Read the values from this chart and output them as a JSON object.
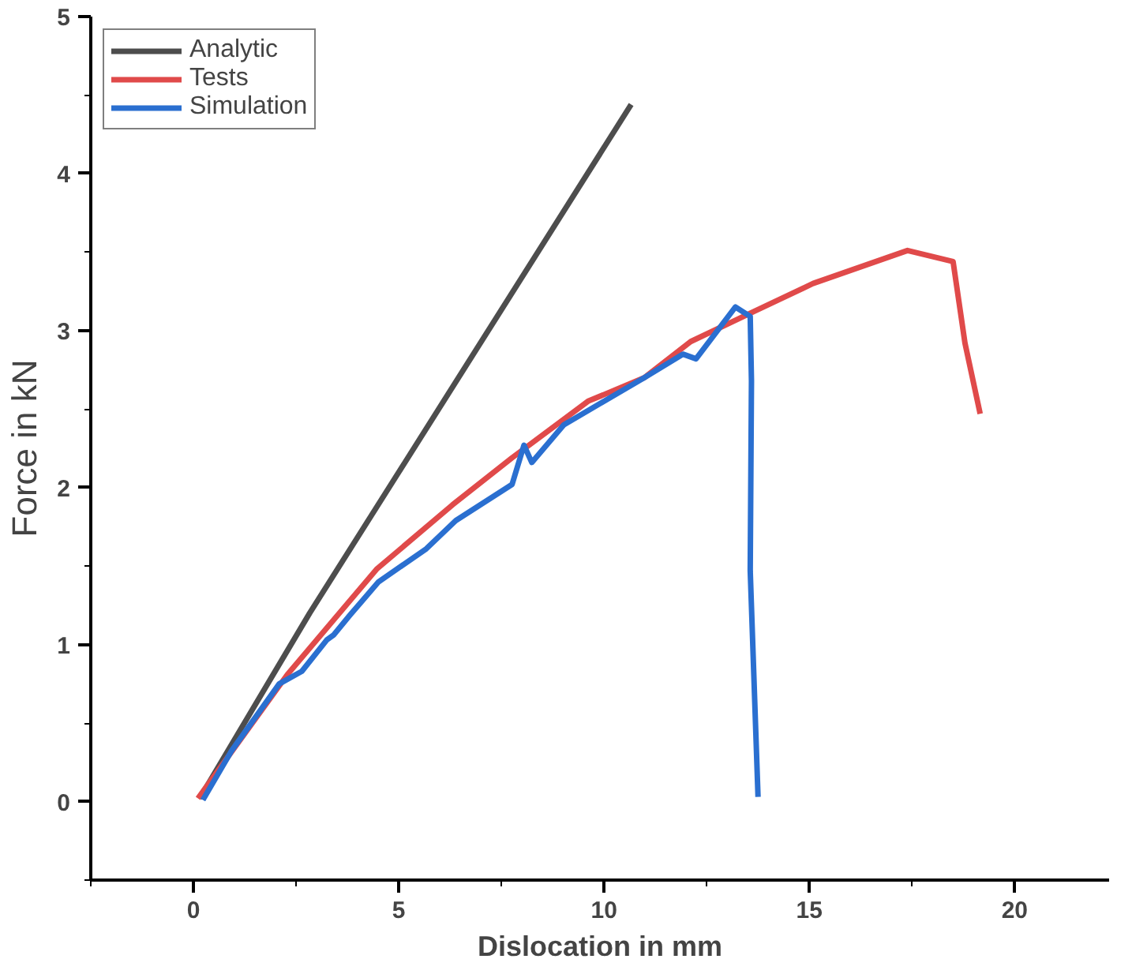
{
  "chart_data": {
    "type": "line",
    "xlabel": "Dislocation in mm",
    "ylabel": "Force in kN",
    "xlim": [
      -2.5,
      22.3
    ],
    "ylim": [
      -0.5,
      5
    ],
    "xticks": [
      0,
      5,
      10,
      15,
      20
    ],
    "yticks": [
      0,
      1,
      2,
      3,
      4,
      5
    ],
    "grid": false,
    "legend": "top left",
    "marker": "none",
    "line_style": "solid",
    "series": [
      {
        "name": "Analytic",
        "color": "#4d4d4d",
        "x": [
          0.15,
          2.83,
          10.66
        ],
        "values": [
          0.02,
          1.2,
          4.44
        ]
      },
      {
        "name": "Tests",
        "color": "#e04a4a",
        "x": [
          0.11,
          2.29,
          4.46,
          6.31,
          7.76,
          9.61,
          10.98,
          12.11,
          13.64,
          15.09,
          17.39,
          18.5,
          18.79,
          19.16
        ],
        "values": [
          0.02,
          0.81,
          1.48,
          1.89,
          2.19,
          2.55,
          2.7,
          2.93,
          3.12,
          3.3,
          3.51,
          3.44,
          2.92,
          2.47
        ]
      },
      {
        "name": "Simulation",
        "color": "#2a6fd0",
        "x": [
          0.23,
          0.92,
          2.09,
          2.64,
          3.25,
          3.41,
          3.82,
          4.51,
          5.67,
          6.39,
          7.76,
          8.05,
          8.24,
          9.02,
          10.98,
          11.92,
          12.24,
          13.2,
          13.56,
          13.59,
          13.56,
          13.75
        ],
        "values": [
          0.01,
          0.32,
          0.75,
          0.83,
          1.03,
          1.06,
          1.19,
          1.4,
          1.61,
          1.79,
          2.02,
          2.27,
          2.16,
          2.4,
          2.7,
          2.85,
          2.82,
          3.15,
          3.09,
          2.68,
          1.47,
          0.03
        ]
      }
    ]
  }
}
